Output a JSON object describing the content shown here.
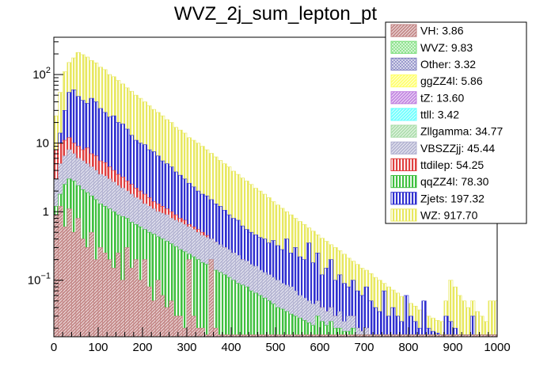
{
  "chart_data": {
    "type": "bar",
    "stacked": true,
    "log_scale_y": true,
    "title": "WVZ_2j_sum_lepton_pt",
    "xlabel": "",
    "ylabel": "",
    "xlim": [
      0,
      1000
    ],
    "ylim": [
      0.015,
      350
    ],
    "bin_width": 10,
    "x_ticks": [
      "0",
      "100",
      "200",
      "300",
      "400",
      "500",
      "600",
      "700",
      "800",
      "900",
      "1000"
    ],
    "x_tick_values": [
      0,
      100,
      200,
      300,
      400,
      500,
      600,
      700,
      800,
      900,
      1000
    ],
    "y_ticks": [
      {
        "value": 100,
        "base": "10",
        "exp": "2"
      },
      {
        "value": 10,
        "base": "10",
        "exp": ""
      },
      {
        "value": 1,
        "base": "1",
        "exp": ""
      },
      {
        "value": 0.1,
        "base": "10",
        "exp": "−1"
      }
    ],
    "legend_position": "top-right",
    "series": [
      {
        "name": "VH",
        "label": "VH: 3.86",
        "color": "#c08080",
        "pattern": "diag"
      },
      {
        "name": "WVZ",
        "label": "WVZ: 9.83",
        "color": "#77dd77",
        "pattern": "cross"
      },
      {
        "name": "Other",
        "label": "Other: 3.32",
        "color": "#8080c0",
        "pattern": "cross"
      },
      {
        "name": "ggZZ4l",
        "label": "ggZZ4l: 5.86",
        "color": "#ffff66",
        "pattern": "diag"
      },
      {
        "name": "tZ",
        "label": "tZ: 13.60",
        "color": "#c080e0",
        "pattern": "diag"
      },
      {
        "name": "ttll",
        "label": "ttll: 3.42",
        "color": "#66ffff",
        "pattern": "diag"
      },
      {
        "name": "Zllgamma",
        "label": "Zllgamma: 34.77",
        "color": "#a8dca8",
        "pattern": "diag"
      },
      {
        "name": "VBSZZjj",
        "label": "VBSZZjj: 45.44",
        "color": "#b0b0d0",
        "pattern": "diag"
      },
      {
        "name": "ttdilep",
        "label": "ttdilep: 54.25",
        "color": "#e04040",
        "pattern": "vert"
      },
      {
        "name": "qqZZ4l",
        "label": "qqZZ4l: 78.30",
        "color": "#40c040",
        "pattern": "vert"
      },
      {
        "name": "Zjets",
        "label": "Zjets: 197.32",
        "color": "#3030d0",
        "pattern": "vert"
      },
      {
        "name": "WZ",
        "label": "WZ: 917.70",
        "color": "#e8e860",
        "pattern": "vert"
      }
    ],
    "stack_totals": {
      "x": [
        5,
        15,
        25,
        35,
        45,
        55,
        65,
        75,
        85,
        95,
        105,
        115,
        125,
        135,
        145,
        155,
        165,
        175,
        185,
        195,
        205,
        215,
        225,
        235,
        245,
        255,
        265,
        275,
        285,
        295,
        305,
        315,
        325,
        335,
        345,
        355,
        365,
        375,
        385,
        395,
        405,
        415,
        425,
        435,
        445,
        455,
        465,
        475,
        485,
        495,
        505,
        515,
        525,
        535,
        545,
        555,
        565,
        575,
        585,
        595,
        605,
        615,
        625,
        635,
        645,
        655,
        665,
        675,
        685,
        695,
        705,
        715,
        725,
        735,
        745,
        755,
        765,
        775,
        785,
        795,
        805,
        815,
        825,
        835,
        845,
        855,
        865,
        875,
        885,
        895,
        905,
        915,
        925,
        935,
        945,
        955,
        965,
        975,
        985,
        995
      ],
      "WZ": [
        25,
        55,
        110,
        150,
        175,
        210,
        195,
        180,
        160,
        148,
        128,
        118,
        100,
        93,
        82,
        73,
        64,
        57,
        50,
        45,
        40,
        35,
        31,
        28,
        25,
        22,
        20,
        17,
        15.5,
        14,
        12,
        11,
        10,
        9,
        8,
        7.1,
        6.3,
        5.6,
        5,
        4.5,
        3.9,
        3.5,
        3.1,
        2.8,
        2.5,
        2.2,
        2,
        1.8,
        1.6,
        1.4,
        1.25,
        1.12,
        1,
        0.9,
        0.8,
        0.72,
        0.65,
        0.58,
        0.52,
        0.46,
        0.41,
        0.37,
        0.33,
        0.3,
        0.27,
        0.24,
        0.21,
        0.19,
        0.17,
        0.15,
        0.14,
        0.125,
        0.11,
        0.1,
        0.09,
        0.08,
        0.072,
        0.065,
        0.058,
        0.052,
        0.046,
        0.042,
        0.037,
        0.034,
        0.03,
        0.028,
        0.026,
        0.025,
        0.05,
        0.1,
        0.08,
        0.06,
        0.05,
        0.04,
        0.05,
        0.035,
        0.03,
        0.025,
        0.05,
        0.05
      ],
      "Zjets": [
        6,
        14,
        30,
        55,
        60,
        48,
        42,
        38,
        45,
        40,
        32,
        28,
        24,
        25,
        20,
        19,
        16,
        13,
        11,
        10,
        9.5,
        8,
        7.5,
        6.5,
        5.5,
        5,
        4.5,
        3.8,
        3.4,
        3,
        2.6,
        2.3,
        2,
        1.8,
        1.7,
        1.5,
        1.3,
        1.2,
        1.05,
        0.9,
        0.8,
        0.75,
        0.62,
        0.55,
        0.5,
        0.46,
        0.42,
        0.4,
        0.35,
        0.38,
        0.32,
        0.28,
        0.4,
        0.25,
        0.3,
        0.22,
        0.2,
        0.35,
        0.18,
        0.25,
        0.12,
        0.15,
        0.2,
        0.1,
        0.12,
        0.09,
        0.08,
        0.1,
        0.07,
        0.06,
        0.08,
        0.05,
        0.04,
        0.035,
        0.07,
        0.03,
        0.04,
        0.03,
        0.025,
        0.06,
        0.03,
        0.025,
        0.02,
        0.05,
        0.02,
        0.018,
        0.017,
        0.016,
        0.03,
        0.025,
        0.02,
        0.016,
        0.016,
        0.016,
        0.03,
        0.016,
        0.016,
        0.016,
        0.016,
        0.016
      ],
      "ttdilep": [
        8,
        10,
        11,
        12,
        10,
        9,
        8,
        8.5,
        7,
        6.5,
        5.5,
        5.2,
        4.5,
        4,
        3.5,
        3.2,
        2.8,
        2.5,
        2.2,
        2,
        1.8,
        1.6,
        1.4,
        1.3,
        1.2,
        1.1,
        1,
        0.9,
        0.8,
        0.75,
        0.65,
        0.6,
        0.55,
        0.5,
        0.45,
        0.4,
        0.36,
        0.33,
        0.3,
        0.27,
        0.25,
        0.22,
        0.2,
        0.18,
        0.16,
        0.15,
        0.13,
        0.12,
        0.11,
        0.1,
        0.09,
        0.08,
        0.075,
        0.07,
        0.06,
        0.05,
        0.045,
        0.04,
        0.035,
        0.05,
        0.04,
        0.035,
        0.04,
        0.03,
        0.03,
        0.025,
        0.025,
        0.03,
        0.02,
        0.018,
        0.02,
        0.016,
        0.016,
        0.016,
        0.016,
        0.016,
        0.016,
        0.016,
        0.016,
        0.016,
        0.016,
        0.016,
        0.016,
        0.016,
        0.016,
        0.016,
        0.016,
        0.016,
        0.016,
        0.016,
        0.016,
        0.016,
        0.016,
        0.016,
        0.016,
        0.016,
        0.016,
        0.016,
        0.016,
        0.016
      ],
      "VBSZZjj": [
        3,
        5,
        6.5,
        8,
        7,
        6,
        5.5,
        5,
        4.5,
        4,
        3.5,
        3.3,
        3,
        2.7,
        2.4,
        2.2,
        2,
        1.8,
        1.6,
        1.5,
        1.3,
        1.2,
        1.1,
        1,
        0.95,
        0.9,
        0.8,
        0.75,
        0.7,
        0.65,
        0.6,
        0.55,
        0.5,
        0.45,
        0.42,
        0.4,
        0.36,
        0.33,
        0.3,
        0.28,
        0.25,
        0.23,
        0.2,
        0.19,
        0.17,
        0.16,
        0.14,
        0.13,
        0.12,
        0.11,
        0.1,
        0.09,
        0.085,
        0.08,
        0.07,
        0.06,
        0.055,
        0.05,
        0.045,
        0.05,
        0.04,
        0.035,
        0.04,
        0.03,
        0.035,
        0.025,
        0.03,
        0.03,
        0.02,
        0.018,
        0.02,
        0.016,
        0.016,
        0.016,
        0.016,
        0.016,
        0.016,
        0.016,
        0.016,
        0.016,
        0.016,
        0.016,
        0.016,
        0.016,
        0.016,
        0.016,
        0.016,
        0.016,
        0.016,
        0.016,
        0.016,
        0.016,
        0.016,
        0.016,
        0.016,
        0.016,
        0.016,
        0.016,
        0.016,
        0.016
      ],
      "qqZZ4l": [
        1.2,
        1.8,
        2.5,
        3,
        2.8,
        2.4,
        2.1,
        1.9,
        1.7,
        1.5,
        1.3,
        1.2,
        1.1,
        1,
        0.9,
        0.85,
        0.8,
        0.7,
        0.65,
        0.6,
        0.55,
        0.5,
        0.47,
        0.43,
        0.4,
        0.37,
        0.34,
        0.31,
        0.28,
        0.26,
        0.24,
        0.22,
        0.2,
        0.18,
        0.17,
        0.16,
        0.14,
        0.13,
        0.12,
        0.11,
        0.1,
        0.09,
        0.085,
        0.08,
        0.07,
        0.065,
        0.06,
        0.055,
        0.05,
        0.045,
        0.04,
        0.038,
        0.035,
        0.032,
        0.03,
        0.028,
        0.026,
        0.024,
        0.022,
        0.03,
        0.025,
        0.022,
        0.025,
        0.02,
        0.02,
        0.018,
        0.018,
        0.02,
        0.016,
        0.016,
        0.016,
        0.016,
        0.016,
        0.016,
        0.016,
        0.016,
        0.016,
        0.016,
        0.016,
        0.016,
        0.016,
        0.016,
        0.016,
        0.016,
        0.016,
        0.016,
        0.016,
        0.016,
        0.016,
        0.016,
        0.016,
        0.016,
        0.016,
        0.016,
        0.016,
        0.016,
        0.016,
        0.016,
        0.016,
        0.016
      ],
      "VH": [
        0.9,
        1.2,
        0.6,
        1.1,
        0.5,
        0.8,
        0.4,
        0.3,
        0.5,
        0.2,
        0.3,
        0.25,
        0.2,
        0.15,
        0.25,
        0.1,
        0.3,
        0.15,
        0.2,
        0.1,
        0.2,
        0.08,
        0.05,
        0.1,
        0.06,
        0.04,
        0.05,
        0.03,
        0.03,
        0.02,
        0.2,
        0.03,
        0.02,
        0.02,
        0.016,
        0.2,
        0.02,
        0.016,
        0.016,
        0.016,
        0.016,
        0.016,
        0.016,
        0.016,
        0.016,
        0.016,
        0.016,
        0.016,
        0.016,
        0.016,
        0.016,
        0.016,
        0.016,
        0.016,
        0.016,
        0.016,
        0.016,
        0.016,
        0.016,
        0.016,
        0.016,
        0.016,
        0.016,
        0.016,
        0.016,
        0.016,
        0.016,
        0.016,
        0.016,
        0.016,
        0.016,
        0.016,
        0.016,
        0.016,
        0.016,
        0.016,
        0.016,
        0.016,
        0.016,
        0.016,
        0.016,
        0.016,
        0.016,
        0.016,
        0.016,
        0.016,
        0.016,
        0.016,
        0.016,
        0.016,
        0.016,
        0.016,
        0.016,
        0.016,
        0.016,
        0.016,
        0.016,
        0.016,
        0.016,
        0.016
      ]
    }
  }
}
